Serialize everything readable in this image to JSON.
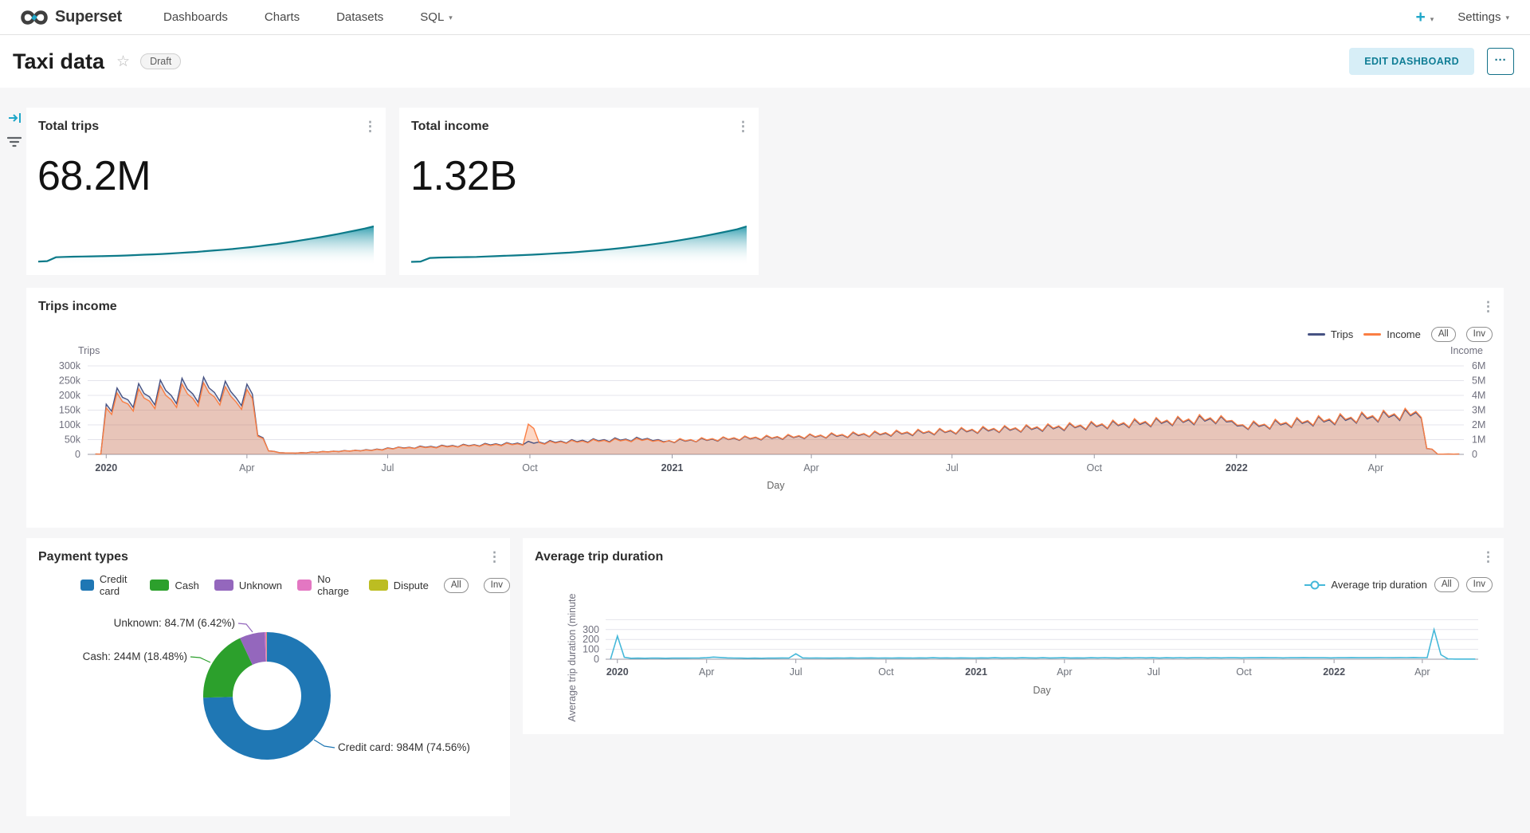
{
  "nav": {
    "brand": "Superset",
    "items": [
      {
        "label": "Dashboards",
        "caret": false
      },
      {
        "label": "Charts",
        "caret": false
      },
      {
        "label": "Datasets",
        "caret": false
      },
      {
        "label": "SQL",
        "caret": true
      }
    ],
    "plus_label": "+",
    "settings_label": "Settings"
  },
  "icons": {
    "kebab": "⋮",
    "star": "☆",
    "caret": "▾",
    "more": "···"
  },
  "header": {
    "title": "Taxi data",
    "status_badge": "Draft",
    "edit_button": "EDIT DASHBOARD"
  },
  "colors": {
    "accent": "#20a7c9",
    "trips_line": "#465283",
    "income_line": "#fa7e43",
    "spark_line": "#0c7a89",
    "spark_fill_top": "#1e95a8",
    "avg_line": "#45b8d9",
    "donut": [
      "#1f77b4",
      "#2ca02c",
      "#9467bd",
      "#e377c2",
      "#bcbd22"
    ]
  },
  "cards": {
    "total_trips": {
      "title": "Total trips",
      "value": "68.2M"
    },
    "total_income": {
      "title": "Total income",
      "value": "1.32B"
    },
    "trips_income": {
      "title": "Trips income",
      "legend": [
        "Trips",
        "Income"
      ],
      "pills": [
        "All",
        "Inv"
      ],
      "left_axis_title": "Trips",
      "right_axis_title": "Income",
      "x_axis_title": "Day"
    },
    "payment_types": {
      "title": "Payment types",
      "pills": [
        "All",
        "Inv"
      ]
    },
    "avg_duration": {
      "title": "Average trip duration",
      "legend_label": "Average trip duration",
      "pills": [
        "All",
        "Inv"
      ],
      "y_axis_title": "Average trip duration (minute",
      "x_axis_title": "Day"
    }
  },
  "chart_data": [
    {
      "name": "total-trips-sparkline",
      "type": "area",
      "title": "Total trips trend",
      "values": [
        2,
        3,
        14,
        15,
        15.5,
        16,
        16.5,
        17,
        17.5,
        18,
        19,
        20,
        21,
        22,
        23,
        24.5,
        26,
        27.5,
        29,
        31,
        33,
        35,
        37,
        39.5,
        42,
        45,
        48,
        51,
        54.5,
        58,
        62,
        66,
        70,
        74.5,
        79,
        84,
        89,
        94,
        100
      ]
    },
    {
      "name": "total-income-sparkline",
      "type": "area",
      "title": "Total income trend",
      "values": [
        1,
        2,
        12,
        13,
        13.5,
        14,
        14.5,
        15,
        16,
        17,
        18,
        19,
        20,
        21,
        22.5,
        24,
        25.5,
        27,
        29,
        31,
        33,
        35.5,
        38,
        41,
        44,
        47,
        50.5,
        54,
        58,
        62,
        66.5,
        71,
        76,
        81,
        86.5,
        92,
        100
      ]
    },
    {
      "name": "trips-income",
      "type": "line",
      "title": "Trips income",
      "xlabel": "Day",
      "grid": true,
      "legend_position": "top-right",
      "x_span_days": 890,
      "weekly_day_start": 5,
      "weekly_day_step": 7,
      "weekly_dip": 0.86,
      "x_tick_days": [
        12,
        103,
        194,
        286,
        378,
        468,
        559,
        651,
        743,
        833
      ],
      "x_tick_labels": [
        "2020",
        "Apr",
        "Jul",
        "Oct",
        "2021",
        "Apr",
        "Jul",
        "Oct",
        "2022",
        "Apr"
      ],
      "y_left": {
        "title": "Trips",
        "lim": [
          0,
          300000
        ],
        "ticks": [
          "300k",
          "250k",
          "200k",
          "150k",
          "100k",
          "50k",
          "0"
        ]
      },
      "y_right": {
        "title": "Income",
        "lim": [
          0,
          6000000
        ],
        "ticks": [
          "6M",
          "5M",
          "4M",
          "3M",
          "2M",
          "1M",
          "0"
        ]
      },
      "series": [
        {
          "name": "Trips",
          "axis": "left",
          "unit": "thousands",
          "values": [
            1,
            170,
            225,
            185,
            240,
            195,
            252,
            200,
            258,
            205,
            262,
            210,
            248,
            192,
            238,
            65,
            12,
            6,
            5,
            6,
            8,
            10,
            11,
            13,
            14,
            16,
            18,
            22,
            25,
            24,
            28,
            27,
            31,
            30,
            34,
            33,
            37,
            36,
            40,
            38,
            44,
            42,
            47,
            45,
            50,
            48,
            53,
            50,
            56,
            52,
            58,
            54,
            50,
            46,
            52,
            49,
            55,
            52,
            58,
            55,
            61,
            57,
            63,
            59,
            66,
            62,
            68,
            64,
            71,
            66,
            74,
            69,
            77,
            72,
            80,
            74,
            83,
            77,
            86,
            80,
            89,
            83,
            92,
            86,
            95,
            88,
            98,
            91,
            101,
            94,
            105,
            97,
            109,
            101,
            113,
            105,
            118,
            109,
            122,
            113,
            126,
            117,
            131,
            121,
            128,
            112,
            98,
            110,
            100,
            116,
            106,
            122,
            112,
            128,
            117,
            134,
            123,
            140,
            128,
            146,
            134,
            152,
            142,
            20,
            1,
            1,
            1
          ]
        },
        {
          "name": "Income",
          "axis": "right",
          "unit": "millions",
          "values": [
            0.02,
            3.15,
            4.16,
            3.42,
            4.44,
            3.61,
            4.66,
            3.7,
            4.77,
            3.79,
            4.85,
            3.89,
            4.59,
            3.55,
            4.4,
            1.24,
            0.23,
            0.11,
            0.1,
            0.11,
            0.15,
            0.19,
            0.21,
            0.25,
            0.27,
            0.3,
            0.34,
            0.42,
            0.48,
            0.46,
            0.53,
            0.51,
            0.59,
            0.57,
            0.65,
            0.63,
            0.7,
            0.68,
            0.76,
            0.72,
            2.05,
            0.8,
            0.89,
            0.86,
            0.95,
            0.91,
            1.01,
            0.95,
            1.06,
            0.99,
            1.1,
            1.03,
            0.95,
            0.94,
            1.07,
            1.0,
            1.13,
            1.07,
            1.19,
            1.13,
            1.25,
            1.17,
            1.29,
            1.21,
            1.35,
            1.27,
            1.39,
            1.31,
            1.46,
            1.35,
            1.52,
            1.41,
            1.58,
            1.48,
            1.64,
            1.52,
            1.7,
            1.58,
            1.76,
            1.64,
            1.82,
            1.7,
            1.89,
            1.76,
            1.95,
            1.8,
            2.01,
            1.87,
            2.07,
            1.93,
            2.15,
            1.99,
            2.23,
            2.07,
            2.32,
            2.15,
            2.42,
            2.23,
            2.5,
            2.32,
            2.58,
            2.4,
            2.69,
            2.48,
            2.62,
            2.3,
            2.01,
            2.26,
            2.05,
            2.38,
            2.17,
            2.5,
            2.3,
            2.62,
            2.4,
            2.75,
            2.52,
            2.87,
            2.62,
            2.99,
            2.75,
            3.12,
            2.91,
            0.41,
            0.02,
            0.02,
            0.02
          ]
        }
      ]
    },
    {
      "name": "payment-types",
      "type": "pie",
      "title": "Payment types",
      "categories": [
        "Credit card",
        "Cash",
        "Unknown",
        "No charge",
        "Dispute"
      ],
      "values_pct": [
        74.56,
        18.48,
        6.42,
        0.45,
        0.09
      ],
      "value_labels": [
        "984M",
        "244M",
        "84.7M",
        "",
        ""
      ],
      "callout_labels": [
        "Credit card: 984M (74.56%)",
        "Cash: 244M (18.48%)",
        "Unknown: 84.7M (6.42%)"
      ]
    },
    {
      "name": "avg-trip-duration",
      "type": "line",
      "title": "Average trip duration",
      "xlabel": "Day",
      "ylabel": "Average trip duration (minute",
      "ylim": [
        0,
        400
      ],
      "y_ticks": [
        "300",
        "200",
        "100",
        "0"
      ],
      "x_span_days": 890,
      "weekly_day_start": 5,
      "weekly_day_step": 7,
      "x_tick_days": [
        12,
        103,
        194,
        286,
        378,
        468,
        559,
        651,
        743,
        833
      ],
      "x_tick_labels": [
        "2020",
        "Apr",
        "Jul",
        "Oct",
        "2021",
        "Apr",
        "Jul",
        "Oct",
        "2022",
        "Apr"
      ],
      "values": [
        2,
        235,
        20,
        10,
        11,
        10,
        12,
        11,
        10,
        11,
        12,
        11,
        12,
        13,
        15,
        22,
        18,
        14,
        12,
        11,
        10,
        11,
        10,
        12,
        11,
        13,
        12,
        55,
        14,
        12,
        13,
        12,
        11,
        13,
        12,
        14,
        12,
        13,
        14,
        12,
        13,
        12,
        14,
        13,
        12,
        14,
        13,
        15,
        13,
        14,
        12,
        14,
        13,
        12,
        14,
        13,
        15,
        13,
        14,
        13,
        15,
        14,
        13,
        15,
        13,
        14,
        15,
        13,
        14,
        13,
        15,
        14,
        16,
        14,
        13,
        15,
        14,
        16,
        14,
        15,
        13,
        15,
        14,
        16,
        14,
        15,
        16,
        14,
        15,
        14,
        16,
        15,
        14,
        16,
        15,
        17,
        15,
        16,
        14,
        16,
        15,
        17,
        15,
        16,
        15,
        14,
        16,
        15,
        17,
        15,
        16,
        15,
        17,
        16,
        15,
        17,
        16,
        18,
        16,
        17,
        300,
        45,
        4,
        2,
        2,
        2,
        2
      ]
    }
  ]
}
